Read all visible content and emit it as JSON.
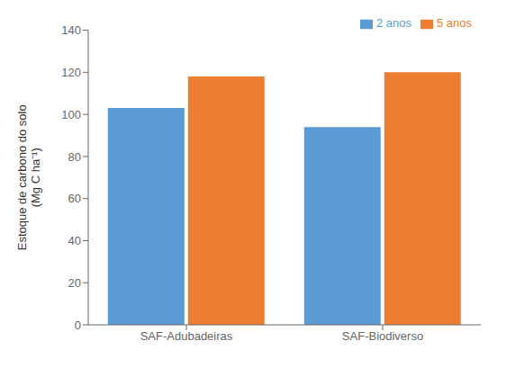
{
  "chart_data": {
    "type": "bar",
    "categories": [
      "SAF-Adubadeiras",
      "SAF-Biodiverso"
    ],
    "series": [
      {
        "name": "2 anos",
        "color": "#5B9BD5",
        "values": [
          103,
          94
        ]
      },
      {
        "name": "5 anos",
        "color": "#ED7D31",
        "values": [
          118,
          120
        ]
      }
    ],
    "ylabel": "Estoque de carbono do solo\n(Mg C ha⁻¹)",
    "ylim": [
      0,
      140
    ],
    "yticks": [
      0,
      20,
      40,
      60,
      80,
      100,
      120,
      140
    ],
    "grid": false,
    "legend": "upper right"
  }
}
